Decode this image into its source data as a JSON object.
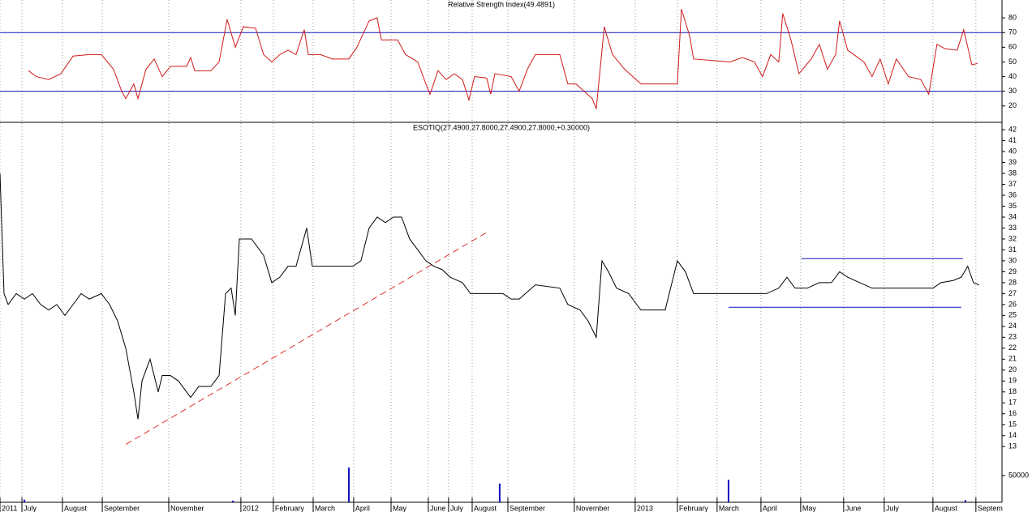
{
  "chart_data": [
    {
      "type": "line",
      "title": "Relative Strength Index(49.4891)",
      "series": [
        {
          "color": "#d01818",
          "x": [
            21.9,
            28.1,
            37.5,
            46.9,
            56.3,
            68.8,
            78.1,
            87.5,
            93.8,
            96.9,
            103.1,
            106.3,
            112.5,
            118.8,
            125,
            131.3,
            143.8,
            146.9,
            150,
            162.5,
            168.8,
            175,
            181.3,
            187.5,
            196.9,
            203.1,
            209.4,
            215.6,
            221.9,
            228.1,
            234.4,
            237.5,
            246.9,
            256.3,
            268.8,
            275,
            284.4,
            290.6,
            293.8,
            306.3,
            312.5,
            321.9,
            328.1,
            331.3,
            337.5,
            343.8,
            350,
            356.3,
            361.3,
            365.6,
            375,
            378.1,
            381.3,
            393.8,
            400,
            406.3,
            412.5,
            431.3,
            437.5,
            443.8,
            450,
            456.3,
            459.4,
            465.6,
            471.9,
            481.3,
            493.8,
            521.9,
            525,
            531.3,
            534.4,
            562.5,
            571.9,
            581.3,
            587.5,
            593.8,
            600,
            603.1,
            609.4,
            615.6,
            625,
            631.3,
            637.5,
            643.8,
            646.9,
            653.1,
            659.4,
            665.6,
            671.9,
            678.1,
            684.4,
            690.6,
            700,
            709.4,
            715.6,
            721.9,
            728.1,
            737.5,
            742.5,
            748.8,
            753.1
          ],
          "values": [
            44,
            40,
            38,
            42,
            54,
            55,
            55,
            45,
            30,
            25,
            35,
            25,
            45,
            52,
            40,
            47,
            47,
            53,
            44,
            44,
            50,
            79,
            60,
            74,
            73,
            55,
            50,
            55,
            58,
            55,
            72,
            55,
            55,
            52,
            52,
            60,
            78,
            80,
            65,
            65,
            55,
            50,
            35,
            28,
            44,
            38,
            42,
            38,
            24,
            40,
            39,
            28,
            42,
            40,
            30,
            45,
            55,
            55,
            35,
            35,
            30,
            25,
            18,
            74,
            55,
            45,
            35,
            35,
            86,
            68,
            52,
            50,
            53,
            50,
            40,
            55,
            50,
            83,
            65,
            42,
            52,
            62,
            45,
            55,
            78,
            58,
            54,
            50,
            40,
            52,
            35,
            52,
            40,
            38,
            28,
            62,
            59,
            58,
            72,
            48,
            49
          ]
        }
      ],
      "levels": [
        70,
        30
      ],
      "level_color": "#1010c0",
      "ylim": [
        9.4,
        92.2
      ],
      "yticks": [
        20,
        30,
        40,
        50,
        60,
        70,
        80
      ]
    },
    {
      "type": "line",
      "title": "ESOTIQ(27.4900,27.8000,27.4900,27.8000,+0.30000)",
      "series": [
        {
          "color": "#000000",
          "x": [
            0,
            3.1,
            6.3,
            12.5,
            18.8,
            25,
            31.3,
            37.5,
            43.8,
            50,
            56.3,
            62.5,
            68.8,
            78.1,
            84.4,
            90.6,
            96.9,
            103.1,
            106.3,
            109.4,
            115.6,
            121.9,
            125,
            131.3,
            137.5,
            146.9,
            153.1,
            162.5,
            168.8,
            173.8,
            178.1,
            181.3,
            184.4,
            193.8,
            203.1,
            209.4,
            215.6,
            221.9,
            228.1,
            236.3,
            240.6,
            250,
            259.4,
            271.9,
            278.1,
            284.4,
            290.6,
            296.9,
            303.1,
            309.4,
            315.6,
            321.9,
            328.1,
            334.4,
            340.6,
            346.9,
            356.3,
            362.5,
            375,
            387.5,
            393.8,
            400,
            412.5,
            431.3,
            437.5,
            446.9,
            453.1,
            459.4,
            463.8,
            468.8,
            475,
            484.4,
            490.6,
            493.8,
            500,
            512.5,
            521.9,
            528.1,
            534.4,
            546.9,
            556.3,
            565.6,
            578.1,
            590.6,
            600,
            606.3,
            612.5,
            621.9,
            631.3,
            640.6,
            646.9,
            653.1,
            662.5,
            671.9,
            681.3,
            687.5,
            700,
            709.4,
            718.8,
            725,
            734.4,
            740.6,
            745.6,
            750,
            754.4
          ],
          "values": [
            38,
            27,
            26,
            27,
            26.5,
            27,
            26,
            25.5,
            26,
            25,
            26,
            27,
            26.5,
            27,
            26,
            24.5,
            22,
            18,
            15.5,
            19,
            21,
            18,
            19.5,
            19.5,
            19,
            17.5,
            18.5,
            18.5,
            19.5,
            27,
            27.5,
            25,
            32,
            32,
            30.5,
            28,
            28.5,
            29.5,
            29.5,
            33,
            29.5,
            29.5,
            29.5,
            29.5,
            30,
            33,
            34,
            33.5,
            34,
            34,
            32,
            31,
            30,
            29.5,
            29.2,
            28.5,
            28,
            27,
            27,
            27,
            26.5,
            26.5,
            27.8,
            27.5,
            26,
            25.5,
            24.5,
            23,
            30,
            29,
            27.5,
            27,
            26,
            25.5,
            25.5,
            25.5,
            30,
            29,
            27,
            27,
            27,
            27,
            27,
            27,
            27.5,
            28.5,
            27.5,
            27.5,
            28,
            28,
            29,
            28.5,
            28,
            27.5,
            27.5,
            27.5,
            27.5,
            27.5,
            27.5,
            28,
            28.2,
            28.5,
            29.5,
            28,
            27.8
          ]
        }
      ],
      "lines": [
        {
          "x": [
            96.9,
            375
          ],
          "values": [
            13.2,
            32.6
          ],
          "color": "#e03030",
          "dash": true
        },
        {
          "x": [
            617.5,
            741.9
          ],
          "values": [
            30.2,
            30.2
          ],
          "color": "#1010c0",
          "dash": false
        },
        {
          "x": [
            561.3,
            740.6
          ],
          "values": [
            25.75,
            25.75
          ],
          "color": "#1010c0",
          "dash": false
        }
      ],
      "xlim": [
        0,
        772
      ],
      "xticks": [
        {
          "value": 0,
          "label": "2011"
        },
        {
          "value": 16.9,
          "label": "July"
        },
        {
          "value": 48.1,
          "label": "August"
        },
        {
          "value": 78.8,
          "label": "September"
        },
        {
          "value": 130,
          "label": "November"
        },
        {
          "value": 185.6,
          "label": "2012"
        },
        {
          "value": 210.6,
          "label": "February"
        },
        {
          "value": 241.3,
          "label": "March"
        },
        {
          "value": 272.5,
          "label": "April"
        },
        {
          "value": 301.3,
          "label": "May"
        },
        {
          "value": 330,
          "label": "June"
        },
        {
          "value": 345.6,
          "label": "July"
        },
        {
          "value": 363.8,
          "label": "August"
        },
        {
          "value": 391.3,
          "label": "September"
        },
        {
          "value": 442.5,
          "label": "November"
        },
        {
          "value": 489.4,
          "label": "2013"
        },
        {
          "value": 521.9,
          "label": "February"
        },
        {
          "value": 552.5,
          "label": "March"
        },
        {
          "value": 586.3,
          "label": "April"
        },
        {
          "value": 616.9,
          "label": "May"
        },
        {
          "value": 650,
          "label": "June"
        },
        {
          "value": 681.3,
          "label": "July"
        },
        {
          "value": 718.8,
          "label": "August"
        },
        {
          "value": 751.9,
          "label": "Septem"
        }
      ],
      "ylim": [
        7.9,
        42.6
      ],
      "yticks": [
        13,
        14,
        15,
        16,
        17,
        18,
        19,
        20,
        21,
        22,
        23,
        24,
        25,
        26,
        27,
        28,
        29,
        30,
        31,
        32,
        33,
        34,
        35,
        36,
        37,
        38,
        39,
        40,
        41,
        42
      ]
    },
    {
      "type": "bar",
      "color": "#1010c0",
      "x": [
        18.8,
        179.4,
        268.8,
        385,
        561.3,
        743.8
      ],
      "values": [
        5000,
        3000,
        65000,
        35000,
        42000,
        4000
      ],
      "ylim": [
        0,
        100000
      ],
      "yticks": [
        50000
      ]
    }
  ]
}
